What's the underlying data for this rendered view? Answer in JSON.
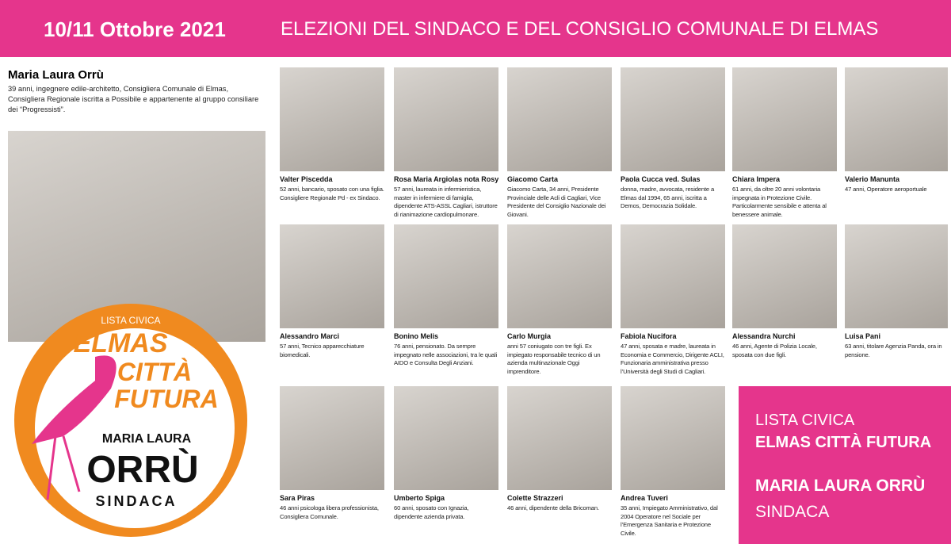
{
  "header": {
    "date": "10/11 Ottobre 2021",
    "title": "ELEZIONI DEL SINDACO E DEL CONSIGLIO COMUNALE DI ELMAS"
  },
  "candidate": {
    "name": "Maria Laura Orrù",
    "bio": "39 anni, ingegnere edile-architetto, Consigliera Comunale di Elmas, Consigliera Regionale iscritta a Possibile e appartenente al gruppo consiliare dei “Progressisti”."
  },
  "logo": {
    "list": "LISTA CIVICA",
    "line1": "ELMAS",
    "line2": "CITTÀ",
    "line3": "FUTURA",
    "first_name": "MARIA LAURA",
    "surname": "ORRÙ",
    "role": "SINDACA"
  },
  "members": [
    {
      "name": "Valter Piscedda",
      "bio": "52 anni, bancario, sposato con una figlia. Consigliere Regionale Pd - ex Sindaco."
    },
    {
      "name": "Rosa Maria Argiolas nota Rosy",
      "bio": "57 anni, laureata in infermieristica, master in infermiere di famiglia, dipendente ATS-ASSL Cagliari, istruttore di rianimazione cardiopulmonare."
    },
    {
      "name": "Giacomo Carta",
      "bio": "Giacomo Carta, 34 anni, Presidente Provinciale delle Acli di Cagliari, Vice Presidente del Consiglio Nazionale dei Giovani."
    },
    {
      "name": "Paola Cucca ved. Sulas",
      "bio": "donna, madre, avvocata, residente a Elmas dal 1994, 65 anni, iscritta a Demos, Democrazia Solidale."
    },
    {
      "name": "Chiara Impera",
      "bio": "61 anni, da oltre 20 anni volontaria impegnata in Protezione Civile. Particolarmente sensibile e attenta al benessere animale."
    },
    {
      "name": "Valerio Manunta",
      "bio": "47 anni, Operatore aeroportuale"
    },
    {
      "name": "Alessandro Marci",
      "bio": "57 anni, Tecnico apparecchiature biomedicali."
    },
    {
      "name": "Bonino Melis",
      "bio": "76 anni, pensionato. Da sempre impegnato nelle associazioni, tra le quali AIDO e Consulta Degli Anziani."
    },
    {
      "name": "Carlo Murgia",
      "bio": "anni 57 coniugato con tre figli. Ex impiegato responsabile tecnico di un azienda multinazionale Oggi imprenditore."
    },
    {
      "name": "Fabiola Nucifora",
      "bio": "47 anni, sposata e madre, laureata in Economia e Commercio, Dirigente ACLI, Funzionaria amministrativa presso l’Università degli Studi di Cagliari."
    },
    {
      "name": "Alessandra Nurchi",
      "bio": "46 anni, Agente di Polizia Locale, sposata con due figli."
    },
    {
      "name": "Luisa Pani",
      "bio": "63 anni, titolare Agenzia Panda, ora in pensione."
    },
    {
      "name": "Sara Piras",
      "bio": "46 anni psicologa libera professionista, Consigliera Comunale."
    },
    {
      "name": "Umberto Spiga",
      "bio": "60 anni, sposato con Ignazia, dipendente azienda privata."
    },
    {
      "name": "Colette Strazzeri",
      "bio": "46 anni, dipendente della Bricoman."
    },
    {
      "name": "Andrea Tuveri",
      "bio": "35 anni, Impiegato Amministrativo, dal 2004 Operatore nel Sociale per l’Emergenza Sanitaria e Protezione Civile."
    }
  ],
  "panel": {
    "list": "LISTA CIVICA",
    "name": "ELMAS CITTÀ FUTURA",
    "candidate": "MARIA LAURA ORRÙ",
    "role": "SINDACA"
  }
}
